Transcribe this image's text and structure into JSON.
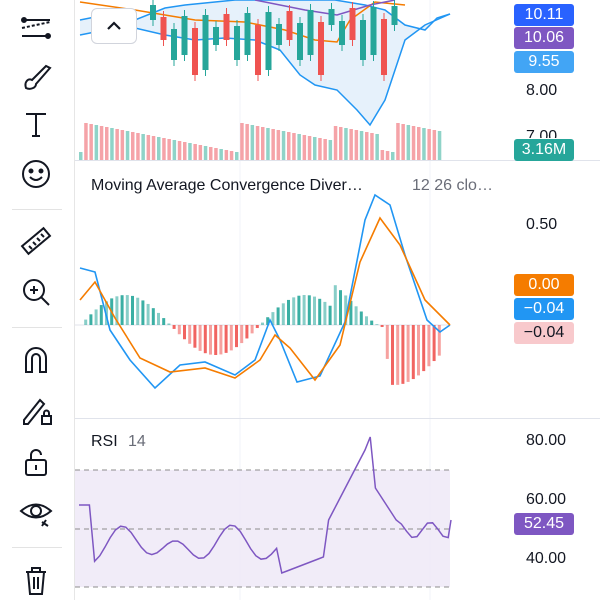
{
  "toolbar": {
    "tools": [
      {
        "name": "trend-line-tool-icon"
      },
      {
        "name": "brush-tool-icon"
      },
      {
        "name": "text-tool-icon"
      },
      {
        "name": "emoji-tool-icon"
      },
      {
        "name": "ruler-tool-icon"
      },
      {
        "name": "zoom-in-tool-icon"
      },
      {
        "name": "magnet-tool-icon"
      },
      {
        "name": "lock-drawing-tool-icon"
      },
      {
        "name": "unlock-tool-icon"
      },
      {
        "name": "eye-tool-icon"
      },
      {
        "name": "trash-tool-icon"
      }
    ]
  },
  "price_pane": {
    "collapse_button": "chevron-up-icon",
    "axis_labels": [
      "8.00",
      "7.00"
    ],
    "badges": [
      {
        "value": "10.11",
        "color": "#2962ff"
      },
      {
        "value": "10.06",
        "color": "#7e57c2"
      },
      {
        "value": "9.55",
        "color": "#42a5f5"
      }
    ],
    "volume_badge": {
      "value": "3.16M",
      "color": "#26a69a"
    }
  },
  "macd_pane": {
    "title": "Moving Average Convergence Diver…",
    "params": "12 26 clo…",
    "axis_labels": [
      "0.50"
    ],
    "badges": [
      {
        "value": "0.00",
        "color": "#f57c00",
        "text": "#ffffff"
      },
      {
        "value": "−0.04",
        "color": "#2196f3",
        "text": "#ffffff"
      },
      {
        "value": "−0.04",
        "color": "#f8c9cc",
        "text": "#131722"
      }
    ]
  },
  "rsi_pane": {
    "title": "RSI",
    "params": "14",
    "axis_labels": [
      "80.00",
      "60.00",
      "40.00"
    ],
    "badge": {
      "value": "52.45",
      "color": "#7e57c2"
    }
  }
}
